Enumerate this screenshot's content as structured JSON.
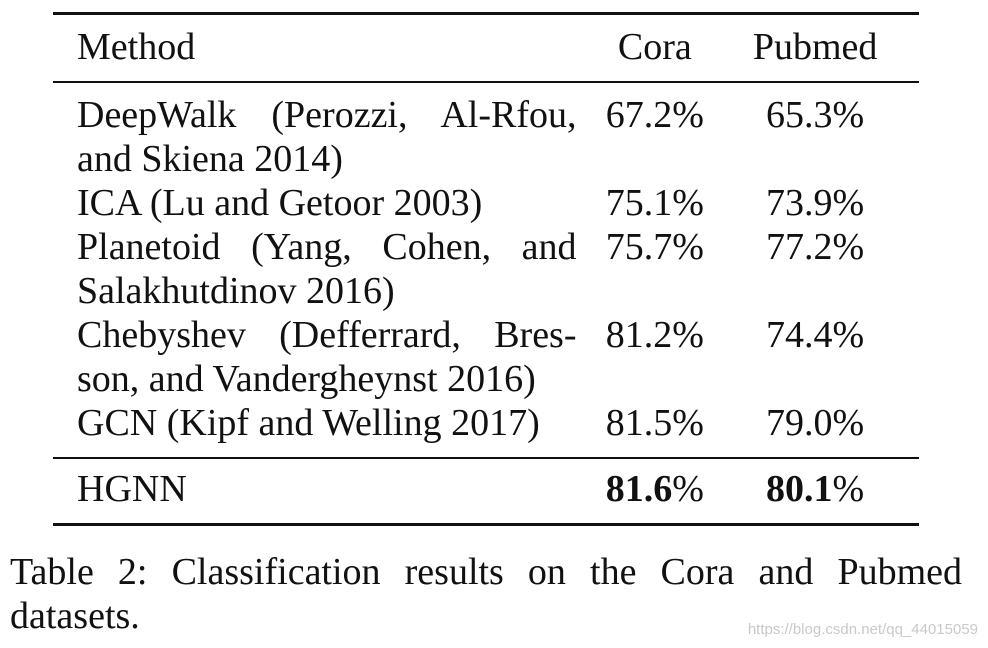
{
  "table": {
    "headers": {
      "method": "Method",
      "cora": "Cora",
      "pubmed": "Pubmed"
    },
    "rows": [
      {
        "method": "DeepWalk (Perozzi, Al-Rfou, and Skiena 2014)",
        "cora": "67.2%",
        "pubmed": "65.3%"
      },
      {
        "method": "ICA (Lu and Getoor 2003)",
        "cora": "75.1%",
        "pubmed": "73.9%"
      },
      {
        "method": "Planetoid (Yang, Cohen, and Salakhutdinov 2016)",
        "cora": "75.7%",
        "pubmed": "77.2%"
      },
      {
        "method": "Chebyshev (Defferrard, Bres-son, and Vandergheynst 2016)",
        "cora": "81.2%",
        "pubmed": "74.4%"
      },
      {
        "method": "GCN (Kipf and Welling 2017)",
        "cora": "81.5%",
        "pubmed": "79.0%"
      }
    ],
    "final_row": {
      "method": "HGNN",
      "cora_value": "81.6",
      "pubmed_value": "80.1",
      "percent": "%"
    }
  },
  "caption": "Table 2: Classification results on the Cora and Pubmed datasets.",
  "watermark": "https://blog.csdn.net/qq_44015059"
}
